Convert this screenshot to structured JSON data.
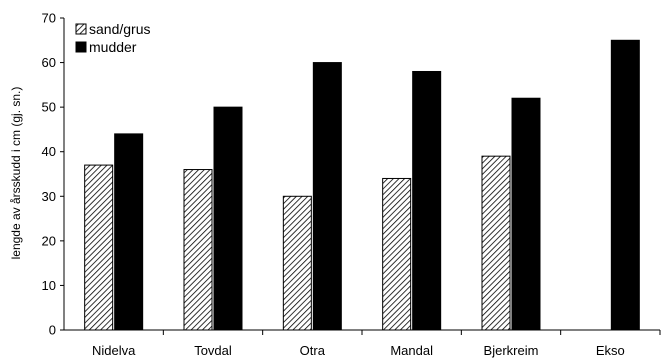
{
  "chart_data": {
    "type": "bar",
    "categories": [
      "Nidelva",
      "Tovdal",
      "Otra",
      "Mandal",
      "Bjerkreim",
      "Ekso"
    ],
    "series": [
      {
        "name": "sand/grus",
        "values": [
          37,
          36,
          30,
          34,
          39,
          null
        ],
        "fill": "hatch"
      },
      {
        "name": "mudder",
        "values": [
          44,
          50,
          60,
          58,
          52,
          65
        ],
        "fill": "#000000"
      }
    ],
    "ylabel": "lengde av årsskudd i cm (gj. sn.)",
    "xlabel": "",
    "ylim": [
      0,
      70
    ],
    "yticks": [
      0,
      10,
      20,
      30,
      40,
      50,
      60,
      70
    ],
    "grid": false,
    "legend": "top-left"
  }
}
